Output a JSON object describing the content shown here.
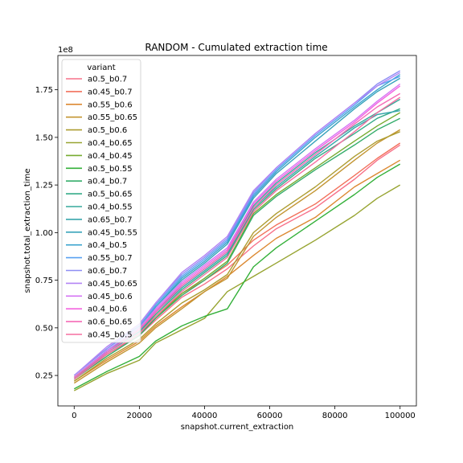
{
  "chart_data": {
    "type": "line",
    "title": "RANDOM - Cumulated extraction time",
    "xlabel": "snapshot.current_extraction",
    "ylabel": "snapshot.total_extraction_time",
    "y_offset_label": "1e8",
    "xlim": [
      -5000,
      105000
    ],
    "ylim": [
      0.09,
      1.93
    ],
    "x_ticks": [
      0,
      20000,
      40000,
      60000,
      80000,
      100000
    ],
    "x_tick_labels": [
      "0",
      "20000",
      "40000",
      "60000",
      "80000",
      "100000"
    ],
    "y_ticks": [
      0.25,
      0.5,
      0.75,
      1.0,
      1.25,
      1.5,
      1.75
    ],
    "y_tick_labels": [
      "0.25",
      "0.50",
      "0.75",
      "1.00",
      "1.25",
      "1.50",
      "1.75"
    ],
    "legend_title": "variant",
    "legend_position": "upper-left",
    "grid": false,
    "x": [
      0,
      10000,
      20000,
      25000,
      33000,
      40000,
      47000,
      55000,
      62000,
      74000,
      86000,
      93000,
      100000
    ],
    "series": [
      {
        "name": "a0.5_b0.7",
        "color": "#f77189",
        "values": [
          0.23,
          0.36,
          0.46,
          0.54,
          0.66,
          0.73,
          0.81,
          0.93,
          1.02,
          1.13,
          1.28,
          1.38,
          1.46
        ]
      },
      {
        "name": "a0.45_b0.7",
        "color": "#f2715b",
        "values": [
          0.24,
          0.37,
          0.48,
          0.56,
          0.68,
          0.75,
          0.83,
          0.96,
          1.04,
          1.15,
          1.3,
          1.39,
          1.47
        ]
      },
      {
        "name": "a0.55_b0.6",
        "color": "#dc8932",
        "values": [
          0.22,
          0.33,
          0.43,
          0.51,
          0.61,
          0.69,
          0.77,
          0.88,
          0.97,
          1.08,
          1.24,
          1.31,
          1.38
        ]
      },
      {
        "name": "a0.55_b0.65",
        "color": "#c39532",
        "values": [
          0.21,
          0.32,
          0.42,
          0.5,
          0.6,
          0.69,
          0.76,
          0.98,
          1.08,
          1.22,
          1.38,
          1.47,
          1.54
        ]
      },
      {
        "name": "a0.5_b0.6",
        "color": "#ae9d31",
        "values": [
          0.22,
          0.34,
          0.44,
          0.52,
          0.63,
          0.7,
          0.78,
          1.0,
          1.1,
          1.24,
          1.4,
          1.48,
          1.53
        ]
      },
      {
        "name": "a0.4_b0.65",
        "color": "#97a431",
        "values": [
          0.17,
          0.26,
          0.33,
          0.42,
          0.49,
          0.55,
          0.69,
          0.77,
          0.84,
          0.96,
          1.09,
          1.18,
          1.25
        ]
      },
      {
        "name": "a0.4_b0.45",
        "color": "#77ab31",
        "values": [
          0.23,
          0.36,
          0.47,
          0.55,
          0.68,
          0.76,
          0.85,
          1.1,
          1.2,
          1.34,
          1.48,
          1.56,
          1.63
        ]
      },
      {
        "name": "a0.5_b0.55",
        "color": "#33b039",
        "values": [
          0.18,
          0.27,
          0.35,
          0.43,
          0.51,
          0.56,
          0.6,
          0.82,
          0.92,
          1.06,
          1.2,
          1.29,
          1.36
        ]
      },
      {
        "name": "a0.4_b0.7",
        "color": "#35ad6b",
        "values": [
          0.23,
          0.35,
          0.46,
          0.55,
          0.67,
          0.75,
          0.84,
          1.09,
          1.19,
          1.33,
          1.46,
          1.54,
          1.6
        ]
      },
      {
        "name": "a0.5_b0.65",
        "color": "#36ab88",
        "values": [
          0.24,
          0.37,
          0.48,
          0.57,
          0.7,
          0.79,
          0.88,
          1.12,
          1.23,
          1.39,
          1.52,
          1.6,
          1.65
        ]
      },
      {
        "name": "a0.4_b0.55",
        "color": "#37a89b",
        "values": [
          0.24,
          0.38,
          0.49,
          0.59,
          0.72,
          0.81,
          0.9,
          1.14,
          1.26,
          1.42,
          1.56,
          1.63,
          1.7
        ]
      },
      {
        "name": "a0.65_b0.7",
        "color": "#38a6ab",
        "values": [
          0.23,
          0.37,
          0.48,
          0.58,
          0.71,
          0.8,
          0.89,
          1.13,
          1.24,
          1.4,
          1.55,
          1.62,
          1.64
        ]
      },
      {
        "name": "a0.45_b0.55",
        "color": "#39a4bb",
        "values": [
          0.24,
          0.38,
          0.5,
          0.61,
          0.75,
          0.84,
          0.94,
          1.18,
          1.31,
          1.48,
          1.65,
          1.74,
          1.81
        ]
      },
      {
        "name": "a0.4_b0.5",
        "color": "#3ba3ce",
        "values": [
          0.24,
          0.38,
          0.5,
          0.61,
          0.76,
          0.85,
          0.95,
          1.19,
          1.32,
          1.5,
          1.66,
          1.75,
          1.83
        ]
      },
      {
        "name": "a0.55_b0.7",
        "color": "#58a1f1",
        "values": [
          0.25,
          0.39,
          0.51,
          0.62,
          0.77,
          0.86,
          0.96,
          1.2,
          1.33,
          1.51,
          1.67,
          1.77,
          1.82
        ]
      },
      {
        "name": "a0.6_b0.7",
        "color": "#8e8ef4",
        "values": [
          0.25,
          0.39,
          0.52,
          0.63,
          0.78,
          0.87,
          0.97,
          1.21,
          1.34,
          1.52,
          1.68,
          1.78,
          1.85
        ]
      },
      {
        "name": "a0.45_b0.65",
        "color": "#b384f4",
        "values": [
          0.25,
          0.4,
          0.52,
          0.63,
          0.79,
          0.88,
          0.98,
          1.22,
          1.34,
          1.52,
          1.68,
          1.77,
          1.84
        ]
      },
      {
        "name": "a0.45_b0.6",
        "color": "#d574f4",
        "values": [
          0.24,
          0.38,
          0.5,
          0.6,
          0.74,
          0.83,
          0.92,
          1.16,
          1.28,
          1.44,
          1.59,
          1.69,
          1.78
        ]
      },
      {
        "name": "a0.4_b0.6",
        "color": "#f363df",
        "values": [
          0.24,
          0.37,
          0.49,
          0.59,
          0.73,
          0.82,
          0.91,
          1.15,
          1.27,
          1.43,
          1.58,
          1.68,
          1.77
        ]
      },
      {
        "name": "a0.6_b0.65",
        "color": "#f56ab6",
        "values": [
          0.24,
          0.37,
          0.49,
          0.58,
          0.72,
          0.81,
          0.9,
          1.13,
          1.25,
          1.41,
          1.57,
          1.66,
          1.73
        ]
      },
      {
        "name": "a0.45_b0.5",
        "color": "#f66fa0",
        "values": [
          0.23,
          0.36,
          0.47,
          0.56,
          0.69,
          0.78,
          0.87,
          1.11,
          1.22,
          1.37,
          1.53,
          1.63,
          1.71
        ]
      }
    ]
  }
}
